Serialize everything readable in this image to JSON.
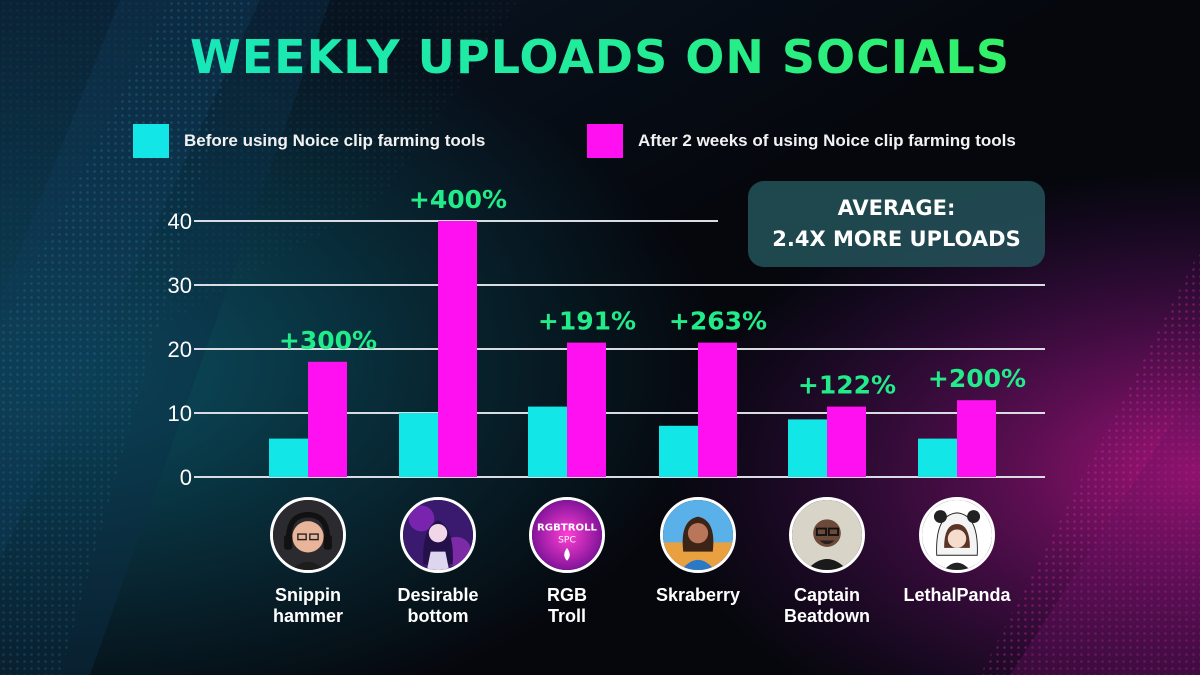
{
  "title": "WEEKLY UPLOADS ON SOCIALS",
  "legend": [
    {
      "label": "Before using Noice clip farming tools",
      "color": "#12e6e6"
    },
    {
      "label": "After 2 weeks of using Noice clip farming tools",
      "color": "#ff10f0"
    }
  ],
  "average_box": {
    "line1": "AVERAGE:",
    "line2": "2.4X MORE UPLOADS"
  },
  "colors": {
    "title_start": "#13e6c8",
    "title_end": "#3af24e",
    "percent_label": "#22ec8a",
    "background": "#05070d"
  },
  "chart_data": {
    "type": "bar",
    "title": "WEEKLY UPLOADS ON SOCIALS",
    "categories": [
      "Snippin\nhammer",
      "Desirable\nbottom",
      "RGB\nTroll",
      "Skraberry",
      "Captain\nBeatdown",
      "LethalPanda"
    ],
    "series": [
      {
        "name": "Before using Noice clip farming tools",
        "color": "#12e6e6",
        "values": [
          6,
          10,
          11,
          8,
          9,
          6
        ]
      },
      {
        "name": "After 2 weeks of using Noice clip farming tools",
        "color": "#ff10f0",
        "values": [
          18,
          40,
          21,
          21,
          11,
          12
        ]
      }
    ],
    "annotations": [
      "+300%",
      "+400%",
      "+191%",
      "+263%",
      "+122%",
      "+200%"
    ],
    "yticks": [
      0,
      10,
      20,
      30,
      40
    ],
    "ylim": [
      0,
      40
    ],
    "grid": true,
    "legend_position": "top"
  },
  "creators": [
    {
      "name": "Snippin\nhammer",
      "avatar_icon": "avatar-headphones-icon"
    },
    {
      "name": "Desirable\nbottom",
      "avatar_icon": "avatar-anime-girl-icon"
    },
    {
      "name": "RGB\nTroll",
      "avatar_icon": "avatar-rgbtroll-logo-icon"
    },
    {
      "name": "Skraberry",
      "avatar_icon": "avatar-woman-icon"
    },
    {
      "name": "Captain\nBeatdown",
      "avatar_icon": "avatar-man-glasses-icon"
    },
    {
      "name": "LethalPanda",
      "avatar_icon": "avatar-panda-hood-icon"
    }
  ]
}
